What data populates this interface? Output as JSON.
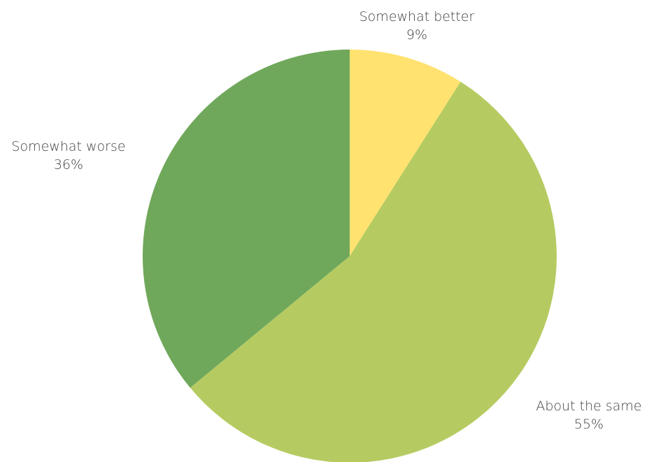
{
  "chart_data": {
    "type": "pie",
    "title": "",
    "start_angle_deg": 0,
    "direction": "clockwise",
    "slices": [
      {
        "label": "Somewhat better",
        "value": 9,
        "value_label": "9%",
        "color": "#ffe26f"
      },
      {
        "label": "About the same",
        "value": 55,
        "value_label": "55%",
        "color": "#b5cb61"
      },
      {
        "label": "Somewhat worse",
        "value": 36,
        "value_label": "36%",
        "color": "#70a85b"
      }
    ]
  }
}
